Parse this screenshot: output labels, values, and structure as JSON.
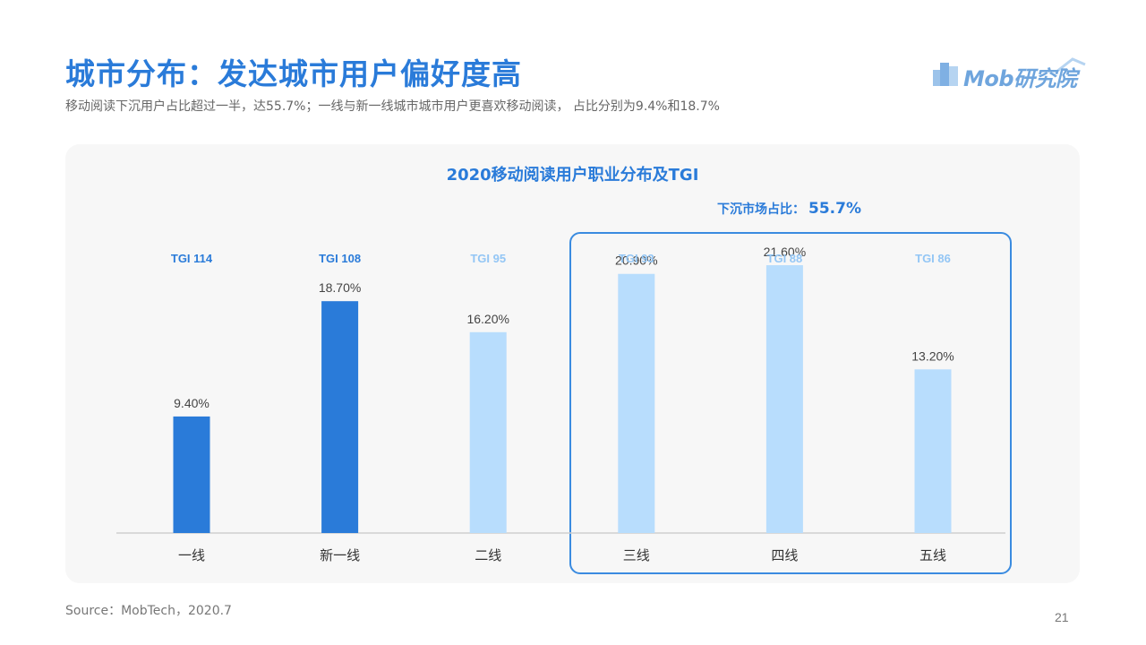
{
  "header": {
    "title": "城市分布：发达城市用户偏好度高",
    "subtitle": "移动阅读下沉用户占比超过一半，达55.7%；一线与新一线城市城市用户更喜欢移动阅读， 占比分别为9.4%和18.7%",
    "logo_text": "Mob研究院"
  },
  "sink_market": {
    "label": "下沉市场占比：",
    "value": "55.7%"
  },
  "chart_data": {
    "type": "bar",
    "title": "2020移动阅读用户职业分布及TGI",
    "xlabel": "",
    "ylabel": "",
    "categories": [
      "一线",
      "新一线",
      "二线",
      "三线",
      "四线",
      "五线"
    ],
    "values": [
      9.4,
      18.7,
      16.2,
      20.9,
      21.6,
      13.2
    ],
    "value_labels": [
      "9.40%",
      "18.70%",
      "16.20%",
      "20.90%",
      "21.60%",
      "13.20%"
    ],
    "tgi_labels": [
      "TGI 114",
      "TGI 108",
      "TGI 95",
      "TGI 93",
      "TGI 88",
      "TGI 86"
    ],
    "highlight": [
      true,
      true,
      false,
      false,
      false,
      false
    ],
    "ylim": [
      0,
      25
    ],
    "grid": false,
    "colors": {
      "highlight": "#2a7bd9",
      "normal": "#b8ddfd"
    }
  },
  "footer": {
    "source": "Source：MobTech，2020.7",
    "page_number": "21"
  }
}
